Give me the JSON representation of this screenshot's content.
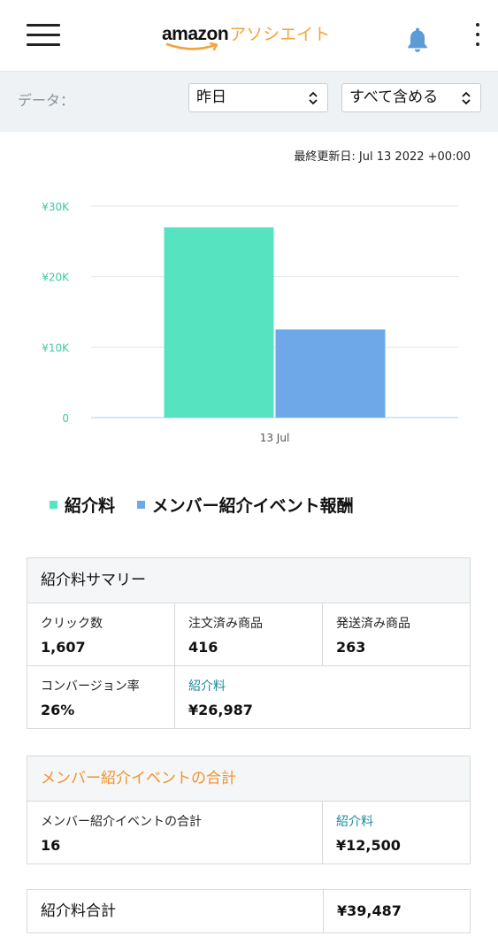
{
  "header": {
    "logo_word": "amazon",
    "logo_suffix": "アソシエイト",
    "menu_icon": "hamburger-menu-icon",
    "notification_icon": "bell-icon",
    "more_icon": "kebab-menu-icon"
  },
  "filters": {
    "label": "データ：",
    "period_value": "昨日",
    "scope_value": "すべて含める"
  },
  "last_updated": "最終更新日: Jul 13 2022 +00:00",
  "chart_data": {
    "type": "bar",
    "categories": [
      "13 Jul"
    ],
    "series": [
      {
        "name": "紹介料",
        "values": [
          26987
        ],
        "color": "#55e3c0"
      },
      {
        "name": "メンバー紹介イベント報酬",
        "values": [
          12500
        ],
        "color": "#6ea8e8"
      }
    ],
    "y_ticks": [
      "0",
      "¥10K",
      "¥20K",
      "¥30K"
    ],
    "ylim": [
      0,
      30000
    ],
    "grid": true,
    "legend_position": "bottom"
  },
  "summary": {
    "title": "紹介料サマリー",
    "clicks_label": "クリック数",
    "clicks_value": "1,607",
    "ordered_label": "注文済み商品",
    "ordered_value": "416",
    "shipped_label": "発送済み商品",
    "shipped_value": "263",
    "conversion_label": "コンバージョン率",
    "conversion_value": "26%",
    "fee_label": "紹介料",
    "fee_value": "¥26,987"
  },
  "bounty": {
    "title": "メンバー紹介イベントの合計",
    "count_label": "メンバー紹介イベントの合計",
    "count_value": "16",
    "fee_label": "紹介料",
    "fee_value": "¥12,500"
  },
  "total": {
    "label": "紹介料合計",
    "value": "¥39,487"
  },
  "colors": {
    "accent_orange": "#f0922e",
    "link_teal": "#1a8a9a",
    "axis_green": "#3cc9a3"
  }
}
